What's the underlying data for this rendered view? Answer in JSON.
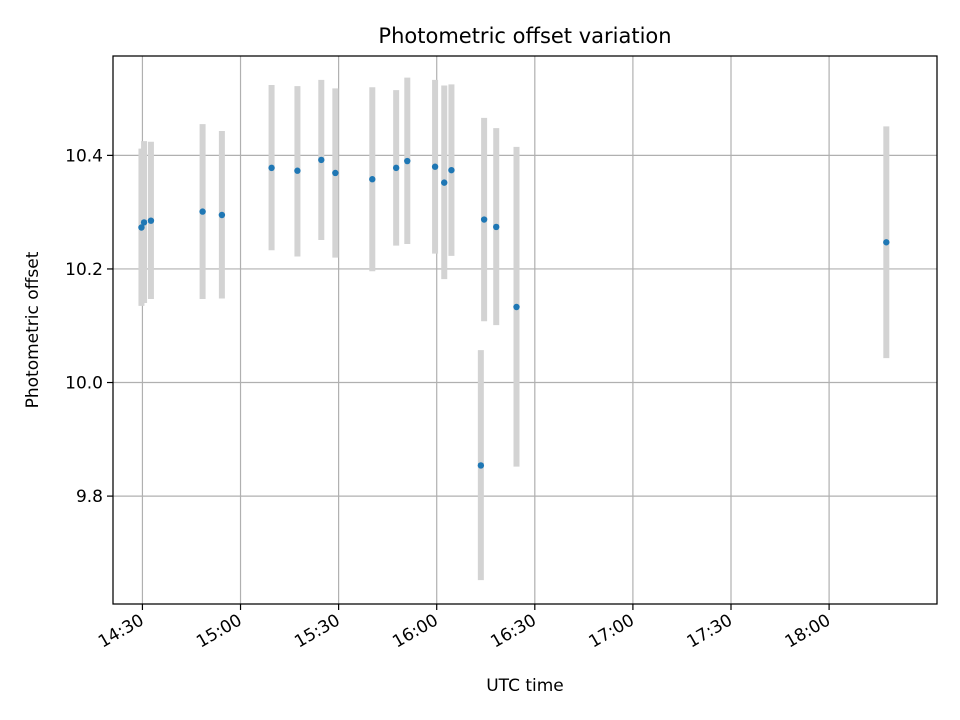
{
  "chart_data": {
    "type": "scatter",
    "title": "Photometric offset variation",
    "xlabel": "UTC time",
    "ylabel": "Photometric offset",
    "xlim": [
      "14:21",
      "18:33"
    ],
    "ylim": [
      9.61,
      10.575
    ],
    "grid": true,
    "x_ticks": [
      "14:30",
      "15:00",
      "15:30",
      "16:00",
      "16:30",
      "17:00",
      "17:30",
      "18:00"
    ],
    "y_ticks": [
      9.8,
      10.0,
      10.2,
      10.4
    ],
    "y_tick_labels": [
      "9.8",
      "10.0",
      "10.2",
      "10.4"
    ],
    "x_tick_labels": [
      "14:30",
      "15:00",
      "15:30",
      "16:00",
      "16:30",
      "17:00",
      "17:30",
      "18:00"
    ],
    "colors": {
      "point": "#1f77b4",
      "errorbar": "#d3d3d3",
      "grid": "#b0b0b0"
    },
    "points": [
      {
        "x": "14:29.7",
        "y": 10.273,
        "ylow": 10.135,
        "yhigh": 10.412
      },
      {
        "x": "14:30.5",
        "y": 10.282,
        "ylow": 10.14,
        "yhigh": 10.425
      },
      {
        "x": "14:32.6",
        "y": 10.285,
        "ylow": 10.147,
        "yhigh": 10.424
      },
      {
        "x": "14:48.4",
        "y": 10.301,
        "ylow": 10.147,
        "yhigh": 10.455
      },
      {
        "x": "14:54.3",
        "y": 10.295,
        "ylow": 10.148,
        "yhigh": 10.443
      },
      {
        "x": "15:09.5",
        "y": 10.378,
        "ylow": 10.233,
        "yhigh": 10.524
      },
      {
        "x": "15:17.4",
        "y": 10.373,
        "ylow": 10.222,
        "yhigh": 10.522
      },
      {
        "x": "15:24.7",
        "y": 10.392,
        "ylow": 10.251,
        "yhigh": 10.533
      },
      {
        "x": "15:29.0",
        "y": 10.369,
        "ylow": 10.22,
        "yhigh": 10.518
      },
      {
        "x": "15:40.3",
        "y": 10.358,
        "ylow": 10.196,
        "yhigh": 10.52
      },
      {
        "x": "15:47.6",
        "y": 10.378,
        "ylow": 10.241,
        "yhigh": 10.515
      },
      {
        "x": "15:51.0",
        "y": 10.39,
        "ylow": 10.244,
        "yhigh": 10.537
      },
      {
        "x": "15:59.5",
        "y": 10.38,
        "ylow": 10.227,
        "yhigh": 10.533
      },
      {
        "x": "16:02.3",
        "y": 10.352,
        "ylow": 10.182,
        "yhigh": 10.523
      },
      {
        "x": "16:04.5",
        "y": 10.374,
        "ylow": 10.223,
        "yhigh": 10.525
      },
      {
        "x": "16:13.5",
        "y": 9.854,
        "ylow": 9.652,
        "yhigh": 10.057
      },
      {
        "x": "16:14.5",
        "y": 10.287,
        "ylow": 10.108,
        "yhigh": 10.466
      },
      {
        "x": "16:18.2",
        "y": 10.274,
        "ylow": 10.101,
        "yhigh": 10.448
      },
      {
        "x": "16:24.4",
        "y": 10.133,
        "ylow": 9.852,
        "yhigh": 10.415
      },
      {
        "x": "18:17.5",
        "y": 10.247,
        "ylow": 10.043,
        "yhigh": 10.451
      }
    ]
  }
}
